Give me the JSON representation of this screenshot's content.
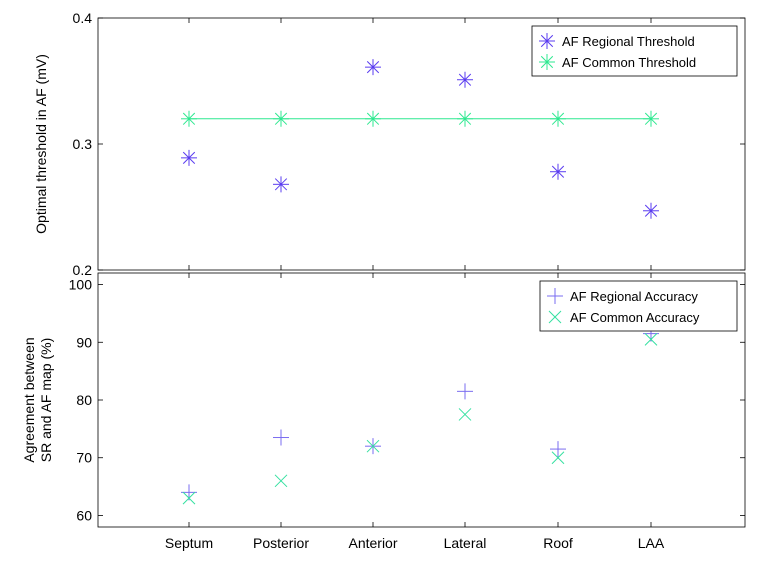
{
  "chart_data": [
    {
      "type": "scatter",
      "categories": [
        "Septum",
        "Posterior",
        "Anterior",
        "Lateral",
        "Roof",
        "LAA"
      ],
      "ylabel": "Optimal threshold in AF (mV)",
      "ylim": [
        0.2,
        0.4
      ],
      "yticks": [
        "0.2",
        "0.3",
        "0.4"
      ],
      "legend_position": "top-right",
      "series": [
        {
          "name": "AF Regional Threshold",
          "marker": "asterisk",
          "color": "#5a3cf0",
          "line": false,
          "values": [
            0.289,
            0.268,
            0.361,
            0.351,
            0.278,
            0.247
          ]
        },
        {
          "name": "AF Common Threshold",
          "marker": "asterisk",
          "color": "#2ee890",
          "line": true,
          "values": [
            0.32,
            0.32,
            0.32,
            0.32,
            0.32,
            0.32
          ]
        }
      ]
    },
    {
      "type": "scatter",
      "categories": [
        "Septum",
        "Posterior",
        "Anterior",
        "Lateral",
        "Roof",
        "LAA"
      ],
      "ylabel": [
        "Agreement between",
        "SR and AF map (%)"
      ],
      "ylim": [
        58,
        102
      ],
      "yticks": [
        "60",
        "70",
        "80",
        "90",
        "100"
      ],
      "legend_position": "top-right",
      "series": [
        {
          "name": "AF Regional Accuracy",
          "marker": "plus",
          "color": "#7a6cf0",
          "line": false,
          "values": [
            64.0,
            73.5,
            72.0,
            81.5,
            71.5,
            91.5
          ]
        },
        {
          "name": "AF Common Accuracy",
          "marker": "x",
          "color": "#33e0a0",
          "line": false,
          "values": [
            63.0,
            66.0,
            72.0,
            77.5,
            70.0,
            90.5
          ]
        }
      ]
    }
  ]
}
